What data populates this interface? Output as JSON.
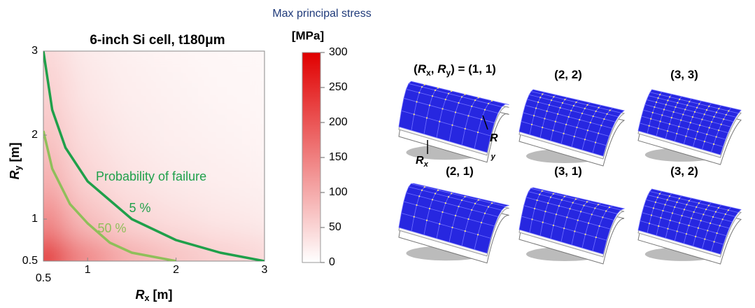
{
  "chart_data": {
    "type": "heatmap",
    "suptitle": "Max principal stress",
    "title": "6-inch Si cell, t180μm",
    "xlabel": [
      {
        "t": "R"
      },
      {
        "t": "x",
        "sub": true
      },
      {
        "t": "  [m]"
      }
    ],
    "ylabel": [
      {
        "t": "R"
      },
      {
        "t": "y",
        "sub": true
      },
      {
        "t": "  [m]"
      }
    ],
    "x": [
      0.5,
      1,
      1.5,
      2,
      2.5,
      3
    ],
    "y": [
      0.5,
      1,
      1.5,
      2,
      2.5,
      3
    ],
    "z": [
      [
        300,
        150,
        100,
        75,
        60,
        50
      ],
      [
        150,
        75,
        50,
        38,
        30,
        25
      ],
      [
        100,
        50,
        33,
        25,
        20,
        17
      ],
      [
        75,
        38,
        25,
        19,
        15,
        13
      ],
      [
        60,
        30,
        20,
        15,
        12,
        10
      ],
      [
        50,
        25,
        17,
        13,
        10,
        8
      ]
    ],
    "xlim": [
      0.5,
      3
    ],
    "ylim": [
      0.5,
      3
    ],
    "xticks": [
      0.5,
      1,
      2,
      3
    ],
    "yticks": [
      0.5,
      1,
      2,
      3
    ],
    "colorbar": {
      "label": "[MPa]",
      "clim": [
        0,
        300
      ],
      "ticks": [
        0,
        50,
        100,
        150,
        200,
        250,
        300
      ],
      "colors": [
        "#ffffff",
        "#e00000"
      ]
    },
    "contours": [
      {
        "name": "5 %",
        "color": "#1fa04a",
        "x": [
          0.5,
          0.6,
          0.75,
          1,
          1.5,
          2,
          2.5,
          3
        ],
        "y": [
          3,
          2.3,
          1.85,
          1.45,
          1.0,
          0.75,
          0.6,
          0.5
        ]
      },
      {
        "name": "50 %",
        "color": "#8fbf5a",
        "x": [
          0.5,
          0.6,
          0.8,
          1,
          1.25,
          1.5,
          2
        ],
        "y": [
          2.05,
          1.6,
          1.18,
          0.95,
          0.72,
          0.6,
          0.5
        ]
      }
    ],
    "annotation": "Probability of failure"
  },
  "illustrations": {
    "labels": [
      [
        {
          "t": "("
        },
        {
          "t": "R"
        },
        {
          "t": "x",
          "sub": true
        },
        {
          "t": ", "
        },
        {
          "t": "R"
        },
        {
          "t": "y",
          "sub": true
        },
        {
          "t": ") = (1, 1)"
        }
      ],
      [
        {
          "t": "(2, 2)"
        }
      ],
      [
        {
          "t": "(3, 3)"
        }
      ],
      [
        {
          "t": "(2, 1)"
        }
      ],
      [
        {
          "t": "(3, 1)"
        }
      ],
      [
        {
          "t": "(3, 2)"
        }
      ]
    ],
    "rx_label": [
      {
        "t": "R"
      },
      {
        "t": "x",
        "sub": true
      }
    ],
    "ry_label": [
      {
        "t": "R"
      },
      {
        "t": "y",
        "sub": true
      }
    ]
  }
}
